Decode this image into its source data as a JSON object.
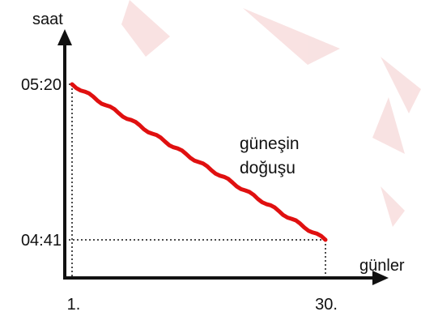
{
  "chart_data": {
    "type": "line",
    "title": "",
    "xlabel": "günler",
    "ylabel": "saat",
    "x_tick_labels": [
      "1.",
      "30."
    ],
    "y_tick_labels": [
      "05:20",
      "04:41"
    ],
    "series": [
      {
        "name": "güneşin doğuşu",
        "label_lines": [
          "güneşin",
          "doğuşu"
        ],
        "color": "#e01010",
        "x": [
          1,
          30
        ],
        "y": [
          "05:20",
          "04:41"
        ],
        "y_minutes": [
          320,
          281
        ]
      }
    ],
    "xlim": [
      1,
      30
    ],
    "ylim": [
      "04:41",
      "05:20"
    ],
    "grid": false,
    "guide_lines": "dotted",
    "axis_color": "#111111",
    "watermark_color": "#f6d6d6"
  }
}
